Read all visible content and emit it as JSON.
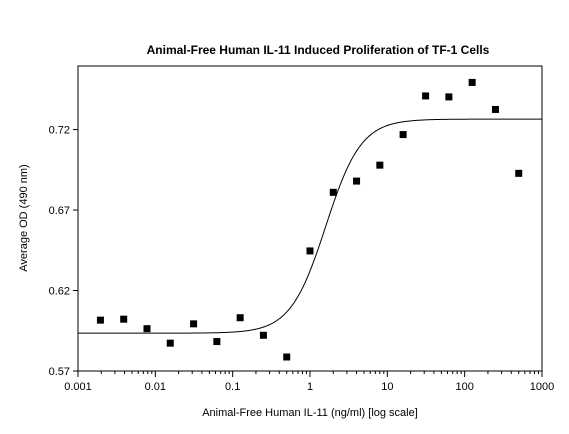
{
  "chart_data": {
    "type": "scatter",
    "title": "Animal-Free Human IL-11 Induced Proliferation of TF-1 Cells",
    "xlabel": "Animal-Free Human IL-11 (ng/ml) [log scale]",
    "ylabel": "Average OD (490 nm)",
    "x_scale": "log",
    "xlim": [
      0.001,
      1000
    ],
    "ylim": [
      0.57,
      0.7595
    ],
    "x_ticks": [
      0.001,
      0.01,
      0.1,
      1,
      10,
      100,
      1000
    ],
    "x_tick_labels": [
      "0.001",
      "0.01",
      "0.1",
      "1",
      "10",
      "100",
      "1000"
    ],
    "y_ticks": [
      0.57,
      0.62,
      0.67,
      0.72
    ],
    "y_tick_labels": [
      "0.57",
      "0.62",
      "0.67",
      "0.72"
    ],
    "grid": false,
    "legend": "none",
    "points": {
      "x": [
        0.00195,
        0.0039,
        0.0078,
        0.0156,
        0.03125,
        0.0625,
        0.125,
        0.25,
        0.5,
        1,
        2,
        4,
        8,
        16,
        31.25,
        62.5,
        125,
        250,
        500
      ],
      "y": [
        0.6016,
        0.6022,
        0.5963,
        0.5873,
        0.5993,
        0.5883,
        0.6031,
        0.5922,
        0.5787,
        0.6446,
        0.681,
        0.688,
        0.6979,
        0.7169,
        0.7409,
        0.7403,
        0.7493,
        0.7325,
        0.6928
      ]
    },
    "fit_curve": {
      "type": "four-parameter-logistic",
      "bottom": 0.5935,
      "top": 0.7265,
      "ec50": 1.6,
      "hill_slope": 1.9
    },
    "colors": {
      "marker": "#000000",
      "line": "#000000",
      "background": "#ffffff"
    }
  }
}
